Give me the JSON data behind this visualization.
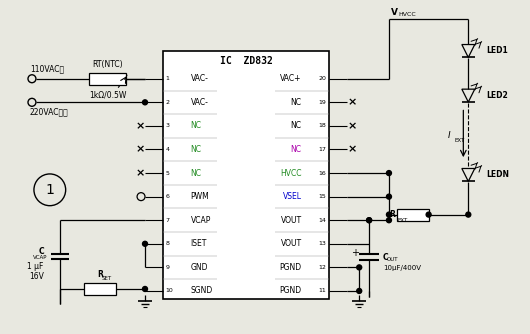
{
  "bg_color": "#e8e8e0",
  "line_color": "#000000",
  "ic_name": "IC  ZD832",
  "left_labels": [
    "VAC-",
    "VAC-",
    "NC",
    "NC",
    "NC",
    "PWM",
    "VCAP",
    "ISET",
    "GND",
    "SGND"
  ],
  "right_labels": [
    "VAC+",
    "NC",
    "NC",
    "NC",
    "HVCC",
    "VSEL",
    "VOUT",
    "VOUT",
    "PGND",
    "PGND"
  ],
  "left_pin_nums": [
    1,
    2,
    3,
    4,
    5,
    6,
    7,
    8,
    9,
    10
  ],
  "right_pin_nums": [
    20,
    19,
    18,
    17,
    16,
    15,
    14,
    13,
    12,
    11
  ],
  "left_label_colors": [
    "#000000",
    "#000000",
    "#228B22",
    "#228B22",
    "#228B22",
    "#000000",
    "#000000",
    "#000000",
    "#000000",
    "#000000"
  ],
  "right_label_colors": [
    "#000000",
    "#000000",
    "#000000",
    "#AA00AA",
    "#228B22",
    "#0000CC",
    "#000000",
    "#000000",
    "#000000",
    "#000000"
  ],
  "input_label1": "110VAC或",
  "input_label2": "220VAC输入",
  "ntc_label": "RT(NTC)",
  "ntc_value": "1kΩ/0.5W",
  "vcap_label": "CVCAP",
  "vcap_value1": "1 μF",
  "vcap_value2": "16V",
  "rset_label": "RSET",
  "rext_label": "REXT",
  "cout_label": "COUT",
  "cout_value": "10μF/400V",
  "iext_label": "IEXT",
  "vhvcc_label": "VHVCC",
  "led_labels": [
    "LED1",
    "LED2",
    "LEDN"
  ],
  "circle1_label": "1"
}
